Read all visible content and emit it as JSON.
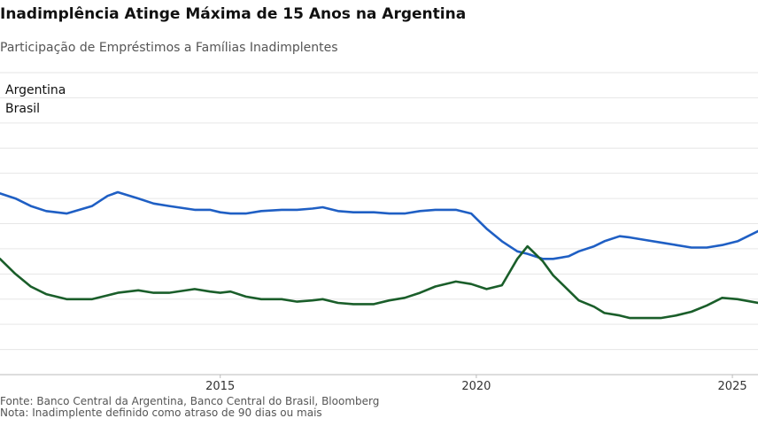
{
  "header": {
    "title": "Inadimplência Atinge Máxima de 15 Anos na Argentina",
    "subtitle": "Participação de Empréstimos a Famílias Inadimplentes"
  },
  "footer": {
    "source": "Fonte: Banco Central da Argentina, Banco Central do Brasil, Bloomberg",
    "note": "Nota: Inadimplente definido como atraso de 90 dias ou mais"
  },
  "chart_data": {
    "type": "line",
    "title": "Inadimplência Atinge Máxima de 15 Anos na Argentina",
    "subtitle": "Participação de Empréstimos a Famílias Inadimplentes",
    "xlabel": "",
    "ylabel": "",
    "x_ticks": [
      "2015",
      "2020",
      "2025"
    ],
    "xlim": [
      2010.7,
      2025.5
    ],
    "ylim": [
      0,
      12
    ],
    "grid": true,
    "legend_position": "top-left",
    "series": [
      {
        "name": "Argentina",
        "color": "#1f5fc4",
        "x": [
          2010.7,
          2011.0,
          2011.3,
          2011.6,
          2012.0,
          2012.5,
          2012.8,
          2013.0,
          2013.4,
          2013.7,
          2014.0,
          2014.5,
          2014.8,
          2015.0,
          2015.2,
          2015.5,
          2015.8,
          2016.2,
          2016.5,
          2016.8,
          2017.0,
          2017.3,
          2017.6,
          2018.0,
          2018.3,
          2018.6,
          2018.9,
          2019.2,
          2019.6,
          2019.9,
          2020.2,
          2020.5,
          2020.8,
          2021.0,
          2021.3,
          2021.5,
          2021.8,
          2022.0,
          2022.3,
          2022.5,
          2022.8,
          2023.0,
          2023.3,
          2023.6,
          2023.9,
          2024.2,
          2024.5,
          2024.8,
          2025.1,
          2025.5
        ],
        "values": [
          7.2,
          7.0,
          6.7,
          6.5,
          6.4,
          6.7,
          7.1,
          7.25,
          7.0,
          6.8,
          6.7,
          6.55,
          6.55,
          6.45,
          6.4,
          6.4,
          6.5,
          6.55,
          6.55,
          6.6,
          6.65,
          6.5,
          6.45,
          6.45,
          6.4,
          6.4,
          6.5,
          6.55,
          6.55,
          6.4,
          5.8,
          5.3,
          4.9,
          4.8,
          4.6,
          4.6,
          4.7,
          4.9,
          5.1,
          5.3,
          5.5,
          5.45,
          5.35,
          5.25,
          5.15,
          5.05,
          5.05,
          5.15,
          5.3,
          5.7
        ]
      },
      {
        "name": "Brasil",
        "color": "#1a5e2a",
        "x": [
          2010.7,
          2011.0,
          2011.3,
          2011.6,
          2012.0,
          2012.5,
          2012.8,
          2013.0,
          2013.4,
          2013.7,
          2014.0,
          2014.5,
          2014.8,
          2015.0,
          2015.2,
          2015.5,
          2015.8,
          2016.2,
          2016.5,
          2016.8,
          2017.0,
          2017.3,
          2017.6,
          2018.0,
          2018.3,
          2018.6,
          2018.9,
          2019.2,
          2019.6,
          2019.9,
          2020.2,
          2020.5,
          2020.8,
          2021.0,
          2021.3,
          2021.5,
          2021.8,
          2022.0,
          2022.3,
          2022.5,
          2022.8,
          2023.0,
          2023.3,
          2023.6,
          2023.9,
          2024.2,
          2024.5,
          2024.8,
          2025.1,
          2025.5
        ],
        "values": [
          4.6,
          4.0,
          3.5,
          3.2,
          3.0,
          3.0,
          3.15,
          3.25,
          3.35,
          3.25,
          3.25,
          3.4,
          3.3,
          3.25,
          3.3,
          3.1,
          3.0,
          3.0,
          2.9,
          2.95,
          3.0,
          2.85,
          2.8,
          2.8,
          2.95,
          3.05,
          3.25,
          3.5,
          3.7,
          3.6,
          3.4,
          3.55,
          4.6,
          5.1,
          4.5,
          3.95,
          3.35,
          2.95,
          2.7,
          2.45,
          2.35,
          2.25,
          2.25,
          2.25,
          2.35,
          2.5,
          2.75,
          3.05,
          3.0,
          2.85
        ]
      }
    ]
  }
}
